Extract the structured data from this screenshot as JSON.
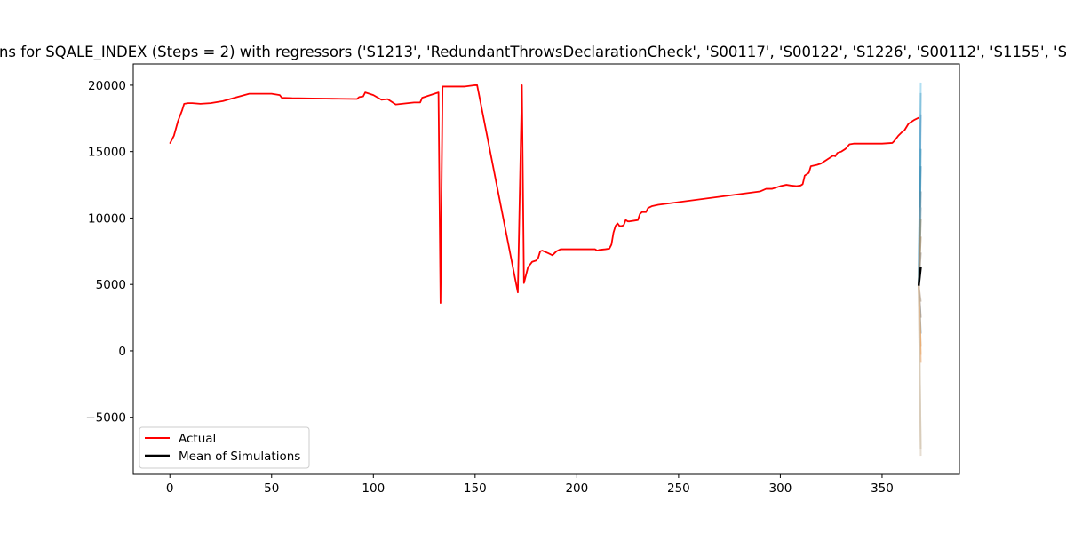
{
  "chart_data": {
    "type": "line",
    "title": "ns for SQALE_INDEX (Steps = 2) with regressors ('S1213', 'RedundantThrowsDeclarationCheck', 'S00117', 'S00122', 'S1226', 'S00112', 'S1155', 'S",
    "xlabel": "",
    "ylabel": "",
    "xlim": [
      -18,
      388
    ],
    "ylim": [
      -9300,
      21600
    ],
    "xticks": [
      0,
      50,
      100,
      150,
      200,
      250,
      300,
      350
    ],
    "xtick_labels": [
      "0",
      "50",
      "100",
      "150",
      "200",
      "250",
      "300",
      "350"
    ],
    "yticks": [
      -5000,
      0,
      5000,
      10000,
      15000,
      20000
    ],
    "ytick_labels": [
      "−5000",
      "0",
      "5000",
      "10000",
      "15000",
      "20000"
    ],
    "grid": false,
    "legend_position": "lower-left",
    "legend": [
      "Actual",
      "Mean of Simulations"
    ],
    "series": [
      {
        "name": "Actual",
        "color": "#ff0000",
        "x": [
          0,
          2,
          4,
          6,
          7,
          9,
          11,
          15,
          20,
          26,
          33,
          39,
          45,
          50,
          52,
          54,
          55,
          60,
          70,
          80,
          92,
          93,
          95,
          96,
          100,
          104,
          107,
          111,
          120,
          123,
          124,
          132,
          133,
          134,
          137,
          145,
          150,
          151,
          171,
          173,
          174,
          176,
          178,
          180,
          181,
          182,
          183,
          186,
          188,
          190,
          192,
          200,
          208,
          209,
          210,
          211,
          214,
          216,
          217,
          218,
          219,
          220,
          221,
          222,
          223,
          224,
          225,
          226,
          228,
          230,
          231,
          232,
          234,
          235,
          237,
          240,
          290,
          293,
          296,
          298,
          300,
          303,
          305,
          308,
          310,
          311,
          312,
          313,
          314,
          315,
          318,
          320,
          322,
          324,
          326,
          327,
          328,
          330,
          332,
          334,
          336,
          340,
          346,
          350,
          355,
          356,
          358,
          360,
          361,
          363,
          366,
          368
        ],
        "y": [
          15600,
          16200,
          17300,
          18100,
          18600,
          18650,
          18650,
          18600,
          18650,
          18800,
          19100,
          19350,
          19350,
          19350,
          19300,
          19250,
          19050,
          19020,
          19000,
          18980,
          18960,
          19100,
          19150,
          19450,
          19250,
          18900,
          18950,
          18550,
          18700,
          18700,
          19050,
          19450,
          3600,
          19900,
          19900,
          19900,
          20000,
          20000,
          4400,
          20000,
          5100,
          6300,
          6700,
          6800,
          7000,
          7500,
          7550,
          7350,
          7200,
          7500,
          7650,
          7650,
          7650,
          7650,
          7550,
          7600,
          7650,
          7700,
          8000,
          8900,
          9400,
          9600,
          9400,
          9400,
          9450,
          9850,
          9750,
          9750,
          9800,
          9850,
          10300,
          10450,
          10450,
          10750,
          10900,
          11000,
          12000,
          12200,
          12200,
          12300,
          12400,
          12500,
          12450,
          12400,
          12450,
          12550,
          13200,
          13300,
          13400,
          13900,
          14000,
          14100,
          14300,
          14500,
          14700,
          14650,
          14900,
          15000,
          15200,
          15550,
          15600,
          15600,
          15600,
          15600,
          15650,
          15800,
          16200,
          16500,
          16600,
          17100,
          17400,
          17550
        ]
      },
      {
        "name": "Mean of Simulations",
        "color": "#000000",
        "x": [
          368,
          369
        ],
        "y": [
          4900,
          6300
        ]
      }
    ],
    "simulation_paths": [
      {
        "color": "#87ceeb",
        "x": [
          368,
          369
        ],
        "y": [
          4900,
          20200
        ]
      },
      {
        "color": "#6fb3d2",
        "x": [
          368,
          369
        ],
        "y": [
          4900,
          19400
        ]
      },
      {
        "color": "#5aa0c8",
        "x": [
          368,
          369
        ],
        "y": [
          4900,
          17800
        ]
      },
      {
        "color": "#4a9cc0",
        "x": [
          368,
          369
        ],
        "y": [
          4900,
          15200
        ]
      },
      {
        "color": "#3d8fb5",
        "x": [
          368,
          369
        ],
        "y": [
          4900,
          13900
        ]
      },
      {
        "color": "#5a8aa0",
        "x": [
          368,
          369
        ],
        "y": [
          4900,
          12000
        ]
      },
      {
        "color": "#7aa0b0",
        "x": [
          368,
          369
        ],
        "y": [
          4900,
          10800
        ]
      },
      {
        "color": "#8f8a70",
        "x": [
          368,
          369
        ],
        "y": [
          4900,
          9900
        ]
      },
      {
        "color": "#a58c6a",
        "x": [
          368,
          369
        ],
        "y": [
          4900,
          8600
        ]
      },
      {
        "color": "#9a8f80",
        "x": [
          368,
          369
        ],
        "y": [
          4900,
          7400
        ]
      },
      {
        "color": "#b4a08c",
        "x": [
          368,
          369
        ],
        "y": [
          4900,
          3700
        ]
      },
      {
        "color": "#a08878",
        "x": [
          368,
          369
        ],
        "y": [
          4900,
          2500
        ]
      },
      {
        "color": "#5d8ba8",
        "x": [
          368,
          369
        ],
        "y": [
          4900,
          1300
        ]
      },
      {
        "color": "#c8a47a",
        "x": [
          368,
          369
        ],
        "y": [
          4900,
          300
        ]
      },
      {
        "color": "#e8b27a",
        "x": [
          368,
          369
        ],
        "y": [
          4900,
          -300
        ]
      },
      {
        "color": "#f0a868",
        "x": [
          368,
          369
        ],
        "y": [
          4900,
          -900
        ]
      },
      {
        "color": "#c8b8a0",
        "x": [
          368,
          369
        ],
        "y": [
          4900,
          -7400
        ]
      },
      {
        "color": "#d8cbb8",
        "x": [
          368,
          369
        ],
        "y": [
          4900,
          -7900
        ]
      }
    ]
  }
}
